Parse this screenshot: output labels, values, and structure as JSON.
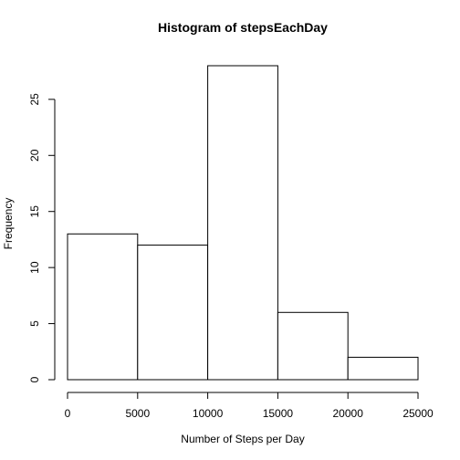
{
  "chart_data": {
    "type": "bar",
    "title": "Histogram of stepsEachDay",
    "xlabel": "Number of Steps per Day",
    "ylabel": "Frequency",
    "bins": [
      {
        "from": 0,
        "to": 5000,
        "count": 13
      },
      {
        "from": 5000,
        "to": 10000,
        "count": 12
      },
      {
        "from": 10000,
        "to": 15000,
        "count": 28
      },
      {
        "from": 15000,
        "to": 20000,
        "count": 6
      },
      {
        "from": 20000,
        "to": 25000,
        "count": 2
      }
    ],
    "xlim": [
      0,
      25000
    ],
    "ylim": [
      0,
      28
    ],
    "x_ticks": [
      "0",
      "5000",
      "10000",
      "15000",
      "20000",
      "25000"
    ],
    "y_ticks": [
      "0",
      "5",
      "10",
      "15",
      "20",
      "25"
    ],
    "bar_fill": "#ffffff",
    "bar_stroke": "#000000",
    "grid": false,
    "legend": "none"
  }
}
